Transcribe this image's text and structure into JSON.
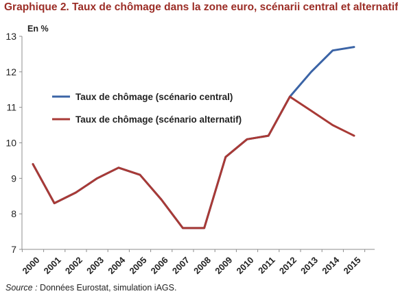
{
  "title": "Graphique 2. Taux de chômage dans la zone euro, scénarii central et alternatif",
  "source_label": "Source :",
  "source_text": "Données Eurostat, simulation iAGS.",
  "chart_data": {
    "type": "line",
    "title": "Graphique 2. Taux de chômage dans la zone euro, scénarii central et alternatif",
    "ylabel": "En %",
    "xlabel": "",
    "ylim": [
      7,
      13
    ],
    "yticks": [
      7,
      8,
      9,
      10,
      11,
      12,
      13
    ],
    "x": [
      "2000",
      "2001",
      "2002",
      "2003",
      "2004",
      "2005",
      "2006",
      "2007",
      "2008",
      "2009",
      "2010",
      "2011",
      "2012",
      "2013",
      "2014",
      "2015"
    ],
    "grid": false,
    "legend_position": "center-left",
    "series": [
      {
        "name": "Taux de chômage (scénario central)",
        "color": "#3b64a6",
        "values": [
          9.4,
          8.3,
          8.6,
          9.0,
          9.3,
          9.1,
          8.4,
          7.6,
          7.6,
          9.6,
          10.1,
          10.2,
          11.3,
          12.0,
          12.6,
          12.7
        ]
      },
      {
        "name": "Taux de chômage (scénario alternatif)",
        "color": "#a83a36",
        "values": [
          9.4,
          8.3,
          8.6,
          9.0,
          9.3,
          9.1,
          8.4,
          7.6,
          7.6,
          9.6,
          10.1,
          10.2,
          11.3,
          10.9,
          10.5,
          10.2
        ]
      }
    ]
  }
}
